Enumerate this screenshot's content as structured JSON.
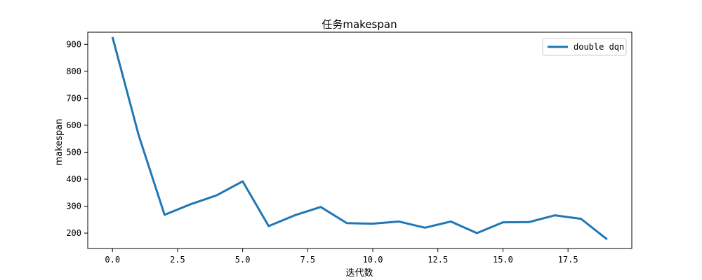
{
  "chart_data": {
    "type": "line",
    "title": "任务makespan",
    "xlabel": "迭代数",
    "ylabel": "makespan",
    "xlim": [
      -0.95,
      19.95
    ],
    "ylim": [
      143,
      945
    ],
    "xticks": [
      0.0,
      2.5,
      5.0,
      7.5,
      10.0,
      12.5,
      15.0,
      17.5
    ],
    "xtick_labels": [
      "0.0",
      "2.5",
      "5.0",
      "7.5",
      "10.0",
      "12.5",
      "15.0",
      "17.5"
    ],
    "yticks": [
      200,
      300,
      400,
      500,
      600,
      700,
      800,
      900
    ],
    "ytick_labels": [
      "200",
      "300",
      "400",
      "500",
      "600",
      "700",
      "800",
      "900"
    ],
    "grid": false,
    "legend_position": "top-right",
    "series": [
      {
        "name": "double dqn",
        "color": "#1f77b4",
        "x": [
          0,
          1,
          2,
          3,
          4,
          5,
          6,
          7,
          8,
          9,
          10,
          11,
          12,
          13,
          14,
          15,
          16,
          17,
          18,
          19
        ],
        "values": [
          927,
          565,
          268,
          307,
          340,
          392,
          226,
          266,
          297,
          237,
          235,
          243,
          220,
          243,
          200,
          240,
          241,
          266,
          253,
          177
        ]
      }
    ]
  }
}
